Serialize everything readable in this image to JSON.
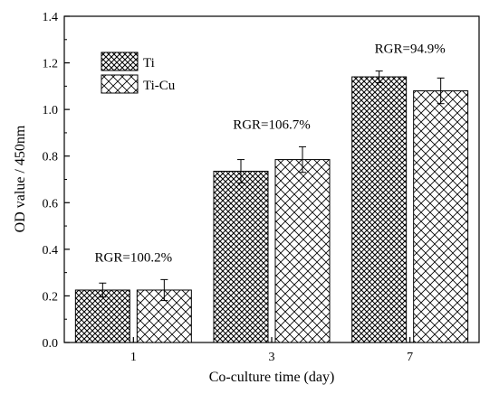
{
  "chart_data": {
    "type": "bar",
    "title": "",
    "xlabel": "Co-culture time (day)",
    "ylabel": "OD value / 450nm",
    "categories": [
      "1",
      "3",
      "7"
    ],
    "ylim": [
      0.0,
      1.4
    ],
    "yticks": [
      "0.0",
      "0.2",
      "0.4",
      "0.6",
      "0.8",
      "1.0",
      "1.2",
      "1.4"
    ],
    "legend_position": "top-left",
    "grid": false,
    "series": [
      {
        "name": "Ti",
        "pattern": "dense-crosshatch",
        "values": [
          0.225,
          0.735,
          1.14
        ],
        "errors": [
          0.03,
          0.05,
          0.025
        ]
      },
      {
        "name": "Ti-Cu",
        "pattern": "sparse-crosshatch",
        "values": [
          0.225,
          0.785,
          1.08
        ],
        "errors": [
          0.045,
          0.055,
          0.055
        ]
      }
    ],
    "annotations": [
      {
        "category": "1",
        "text": "RGR=100.2%"
      },
      {
        "category": "3",
        "text": "RGR=106.7%"
      },
      {
        "category": "7",
        "text": "RGR=94.9%"
      }
    ]
  },
  "colors": {
    "axis": "#000000",
    "bar_fill": "#ffffff",
    "pattern_stroke": "#000000"
  }
}
